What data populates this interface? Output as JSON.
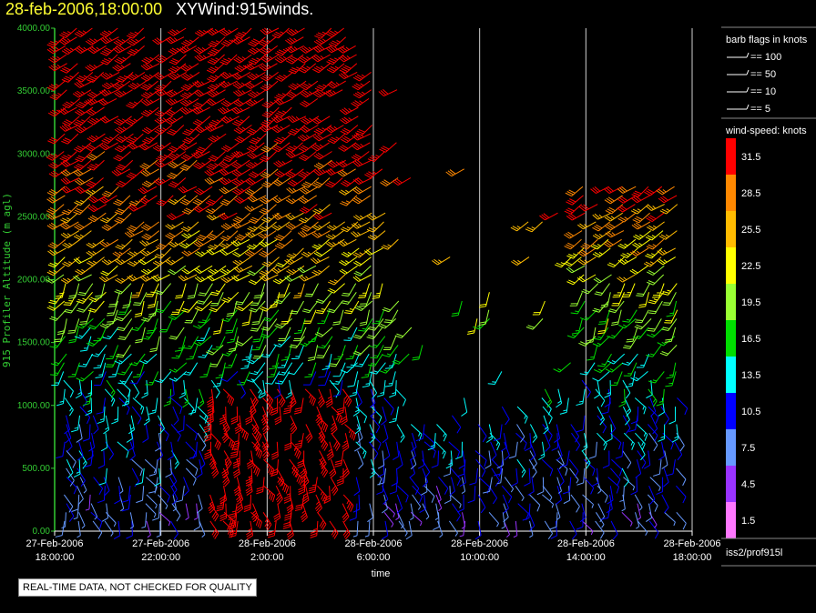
{
  "header": {
    "timestamp": "28-feb-2006,18:00:00",
    "product": "XYWind:915winds."
  },
  "footer": {
    "disclaimer": "REAL-TIME DATA, NOT CHECKED FOR QUALITY",
    "source": "iss2/prof915l"
  },
  "legend": {
    "barb_title": "barb flags in knots",
    "barb_items": [
      "== 100",
      "== 50",
      "== 10",
      "== 5"
    ],
    "speed_title": "wind-speed: knots",
    "speed_bins": [
      {
        "label": "31.5",
        "color": "#ff0000"
      },
      {
        "label": "28.5",
        "color": "#ff8800"
      },
      {
        "label": "25.5",
        "color": "#ffbb00"
      },
      {
        "label": "22.5",
        "color": "#ffff00"
      },
      {
        "label": "19.5",
        "color": "#99ff33"
      },
      {
        "label": "16.5",
        "color": "#00dd00"
      },
      {
        "label": "13.5",
        "color": "#00ffff"
      },
      {
        "label": "10.5",
        "color": "#0000ff"
      },
      {
        "label": "7.5",
        "color": "#6699ff"
      },
      {
        "label": "4.5",
        "color": "#9933ff"
      },
      {
        "label": "1.5",
        "color": "#ff77ff"
      }
    ]
  },
  "chart_data": {
    "type": "wind-barb time-height",
    "xlabel": "time",
    "ylabel": "915 Profiler Altitude (m agl)",
    "ylim": [
      0,
      4000
    ],
    "y_ticks": [
      "0.00",
      "500.00",
      "1000.00",
      "1500.00",
      "2000.00",
      "2500.00",
      "3000.00",
      "3500.00",
      "4000.00"
    ],
    "x_ticks": [
      {
        "date": "27-Feb-2006",
        "time": "18:00:00"
      },
      {
        "date": "27-Feb-2006",
        "time": "22:00:00"
      },
      {
        "date": "28-Feb-2006",
        "time": "2:00:00"
      },
      {
        "date": "28-Feb-2006",
        "time": "6:00:00"
      },
      {
        "date": "28-Feb-2006",
        "time": "10:00:00"
      },
      {
        "date": "28-Feb-2006",
        "time": "14:00:00"
      },
      {
        "date": "28-Feb-2006",
        "time": "18:00:00"
      }
    ],
    "xlim_hours": [
      0,
      24
    ],
    "grid": "vertical lines at each x tick",
    "speed_profile_knots": [
      {
        "altitude": 250,
        "speed": 8
      },
      {
        "altitude": 750,
        "speed": 11
      },
      {
        "altitude": 1250,
        "speed": 14
      },
      {
        "altitude": 1750,
        "speed": 19
      },
      {
        "altitude": 2250,
        "speed": 25
      },
      {
        "altitude": 2750,
        "speed": 30
      },
      {
        "altitude": 3250,
        "speed": 33
      },
      {
        "altitude": 3750,
        "speed": 35
      }
    ]
  },
  "colors": {
    "axis": "#33cc33",
    "grid": "#d0d0d0"
  }
}
